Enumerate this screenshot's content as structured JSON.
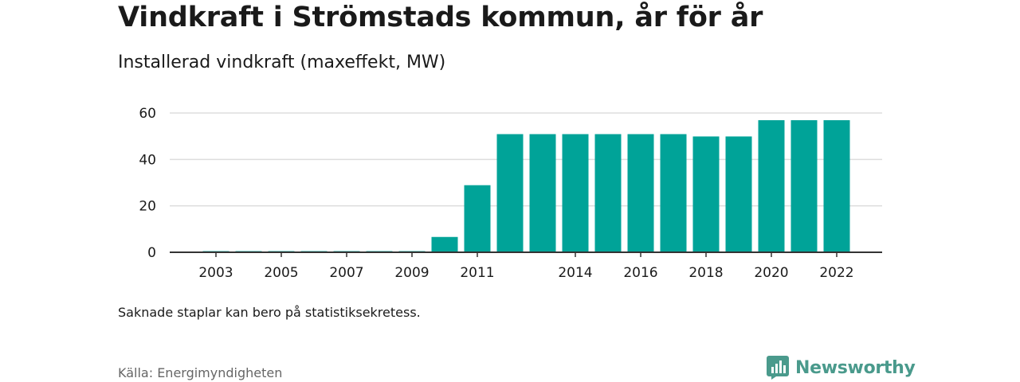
{
  "title": "Vindkraft i Strömstads kommun, år för år",
  "subtitle": "Installerad vindkraft (maxeffekt, MW)",
  "note": "Saknade staplar kan bero på statistiksekretess.",
  "source": "Källa: Energimyndigheten",
  "brand": {
    "name": "Newsworthy",
    "color": "#4a9a8c",
    "icon": "bar-chart-logo-icon"
  },
  "colors": {
    "bar": "#00a398",
    "grid": "#dddddd",
    "axis": "#333333"
  },
  "chart_data": {
    "type": "bar",
    "categories": [
      "2002",
      "2003",
      "2004",
      "2005",
      "2006",
      "2007",
      "2008",
      "2009",
      "2010",
      "2011",
      "2012",
      "2013",
      "2014",
      "2015",
      "2016",
      "2017",
      "2018",
      "2019",
      "2020",
      "2021",
      "2022"
    ],
    "values": [
      0,
      0.5,
      0.5,
      0.5,
      0.5,
      0.5,
      0.5,
      0.5,
      6.6,
      28.9,
      50.9,
      50.9,
      50.9,
      50.9,
      50.9,
      50.9,
      49.9,
      49.9,
      56.9,
      56.9,
      56.9
    ],
    "x_tick_labels": [
      "2003",
      "2005",
      "2007",
      "2009",
      "2011",
      "2014",
      "2016",
      "2018",
      "2020",
      "2022"
    ],
    "y_ticks": [
      0,
      20,
      40,
      60
    ],
    "ylim": [
      0,
      60
    ],
    "grid": true,
    "legend": "none"
  }
}
